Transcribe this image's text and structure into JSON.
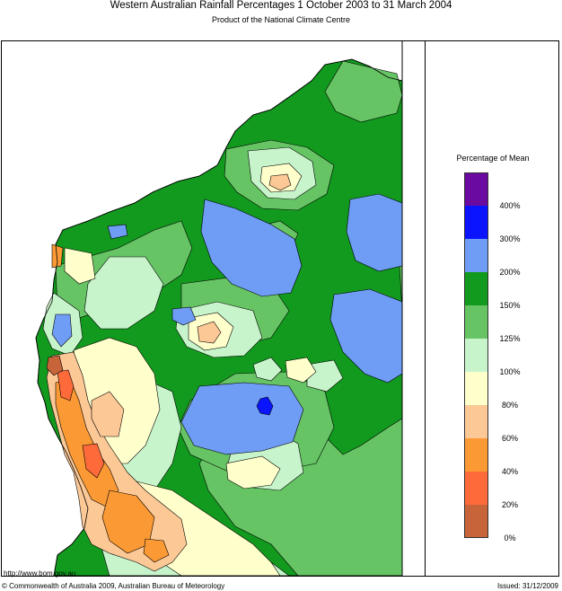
{
  "header": {
    "title": "Western Australian Rainfall Percentages 1 October 2003 to 31 March 2004",
    "subtitle": "Product of the National Climate Centre"
  },
  "legend": {
    "title": "Percentage of Mean",
    "bins": [
      {
        "color": "#6a0aa0"
      },
      {
        "color": "#0a14ff"
      },
      {
        "color": "#6f9cf4"
      },
      {
        "color": "#129a1e"
      },
      {
        "color": "#66c464"
      },
      {
        "color": "#c8f4cc"
      },
      {
        "color": "#ffffcc"
      },
      {
        "color": "#fcc896"
      },
      {
        "color": "#fb9a34"
      },
      {
        "color": "#ff6a3a"
      },
      {
        "color": "#c8643a"
      }
    ],
    "ticks": [
      "400%",
      "300%",
      "200%",
      "150%",
      "125%",
      "100%",
      "80%",
      "60%",
      "40%",
      "20%",
      "0%"
    ]
  },
  "footer": {
    "url": "http://www.bom.gov.au",
    "copyright": "© Commonwealth of Australia 2009, Australian Bureau of Meteorology",
    "issued": "Issued: 31/12/2009"
  }
}
